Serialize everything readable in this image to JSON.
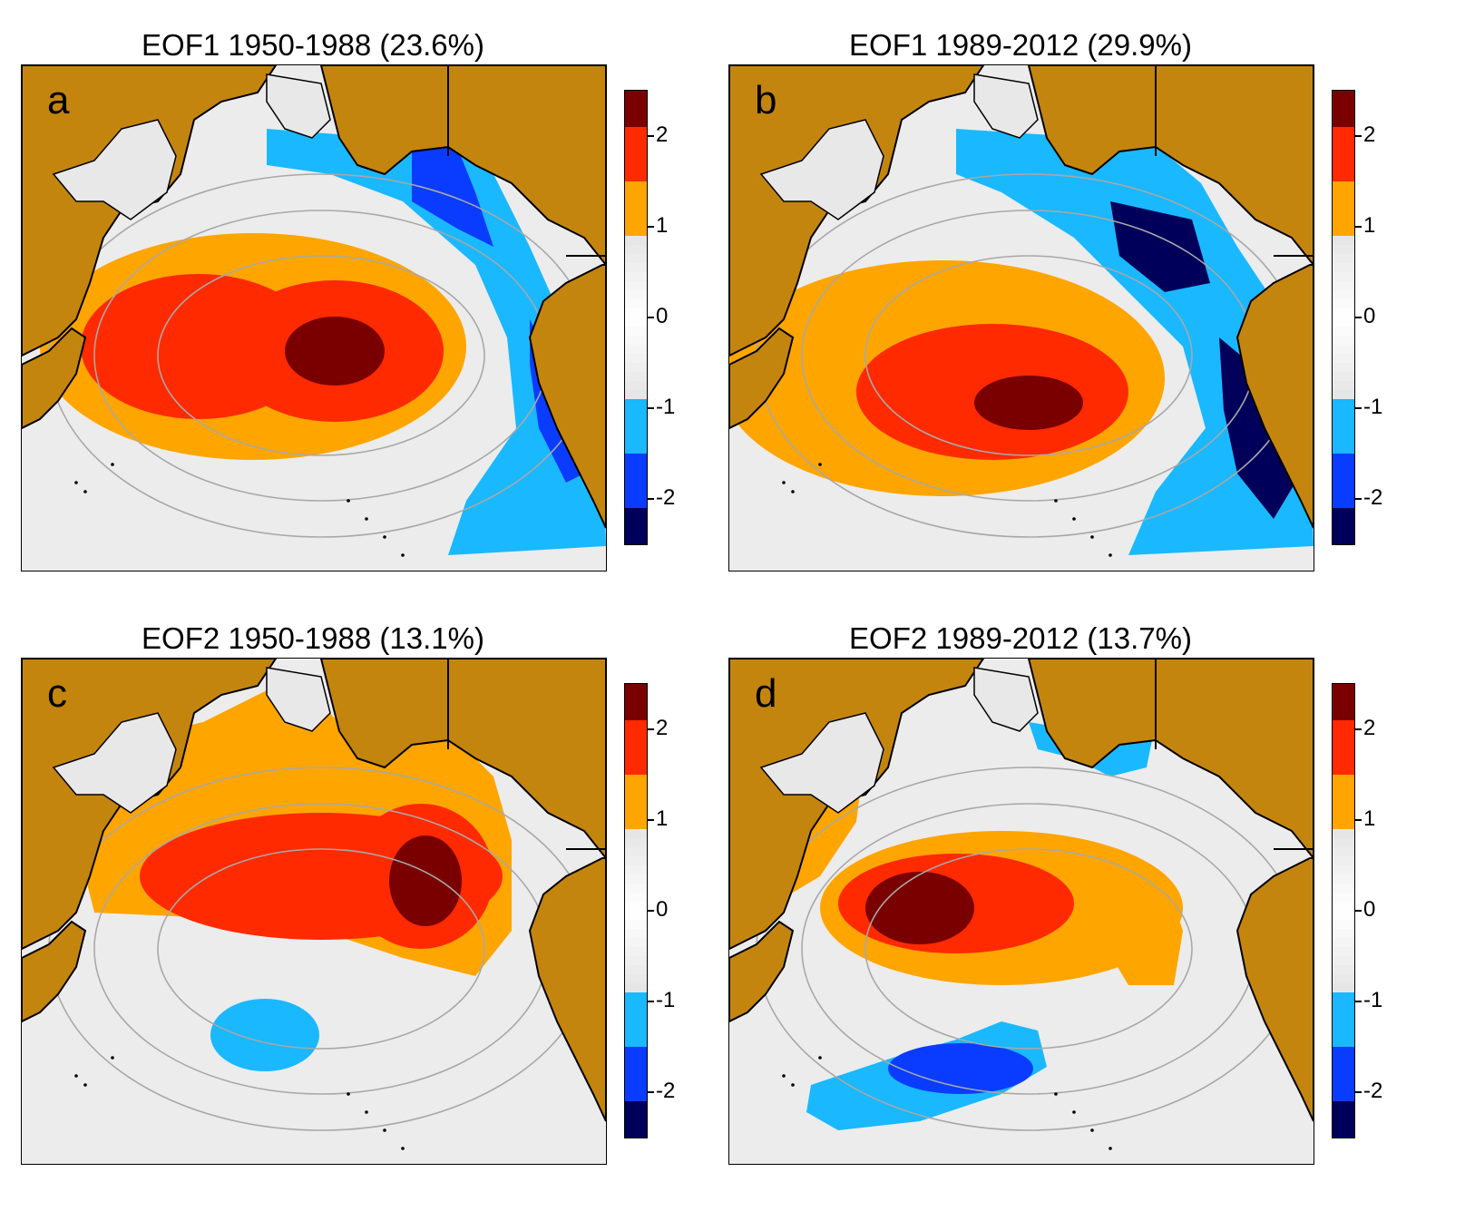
{
  "panels": [
    {
      "id": "a",
      "letter": "a",
      "title": "EOF1 1950-1988 (23.6%)",
      "mode": "EOF1",
      "period": "1950-1988",
      "variance_pct": 23.6
    },
    {
      "id": "b",
      "letter": "b",
      "title": "EOF1 1989-2012 (29.9%)",
      "mode": "EOF1",
      "period": "1989-2012",
      "variance_pct": 29.9
    },
    {
      "id": "c",
      "letter": "c",
      "title": "EOF2 1950-1988 (13.1%)",
      "mode": "EOF2",
      "period": "1950-1988",
      "variance_pct": 13.1
    },
    {
      "id": "d",
      "letter": "d",
      "title": "EOF2 1989-2012 (13.7%)",
      "mode": "EOF2",
      "period": "1989-2012",
      "variance_pct": 13.7
    }
  ],
  "colorbar": {
    "range": [
      -2.5,
      2.5
    ],
    "tick_labels": [
      "2",
      "1",
      "0",
      "-1",
      "-2"
    ],
    "tick_values": [
      2,
      1,
      0,
      -1,
      -2
    ],
    "neutral_band": [
      -0.9,
      0.9
    ]
  },
  "colors": {
    "land": "#c4850f",
    "ocean_neutral": "#ececec",
    "positive_light": "#ffa500",
    "positive_mid": "#ff2a00",
    "positive_dark": "#7a0000",
    "negative_light": "#1ab8ff",
    "negative_mid": "#0a3cff",
    "negative_dark": "#00005a",
    "contour": "#a8a8a8"
  },
  "chart_data": {
    "type": "heatmap",
    "panels": [
      {
        "id": "a",
        "blobs": [
          {
            "kind": "positive",
            "region": "western-central North Pacific",
            "peak": 2.4
          },
          {
            "kind": "negative",
            "region": "Gulf of Alaska and North American coast",
            "peak": -1.8
          }
        ]
      },
      {
        "id": "b",
        "blobs": [
          {
            "kind": "positive",
            "region": "central North Pacific",
            "peak": 2.3
          },
          {
            "kind": "negative",
            "region": "Gulf of Alaska and North American coast",
            "peak": -2.1
          }
        ]
      },
      {
        "id": "c",
        "blobs": [
          {
            "kind": "positive",
            "region": "Bering Sea to central-eastern North Pacific",
            "peak": 2.5
          },
          {
            "kind": "negative",
            "region": "subtropical western Pacific",
            "peak": -1.3
          }
        ]
      },
      {
        "id": "d",
        "blobs": [
          {
            "kind": "positive",
            "region": "western-central North Pacific band",
            "peak": 2.5
          },
          {
            "kind": "negative",
            "region": "subtropical central Pacific",
            "peak": -1.8
          },
          {
            "kind": "negative",
            "region": "Bering Sea",
            "peak": -1.1
          }
        ]
      }
    ]
  }
}
